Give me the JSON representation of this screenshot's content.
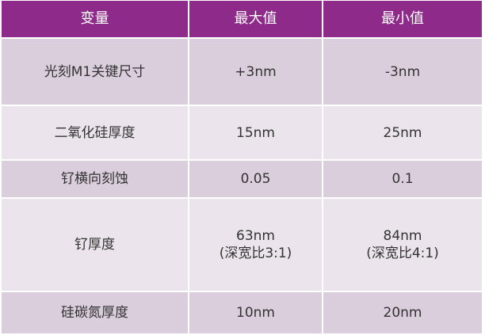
{
  "colors": {
    "header": "#8e2a8a",
    "row_dark": "#dacddc",
    "row_light": "#ece4ec"
  },
  "headers": [
    "变量",
    "最大值",
    "最小值"
  ],
  "rows": [
    {
      "variable": "光刻M1关键尺寸",
      "max": "+3nm",
      "max_note": "",
      "min": "-3nm",
      "min_note": ""
    },
    {
      "variable": "二氧化硅厚度",
      "max": "15nm",
      "max_note": "",
      "min": "25nm",
      "min_note": ""
    },
    {
      "variable": "钌横向刻蚀",
      "max": "0.05",
      "max_note": "",
      "min": "0.1",
      "min_note": ""
    },
    {
      "variable": "钌厚度",
      "max": "63nm",
      "max_note": "(深宽比3:1)",
      "min": "84nm",
      "min_note": "(深宽比4:1)"
    },
    {
      "variable": "硅碳氮厚度",
      "max": "10nm",
      "max_note": "",
      "min": "20nm",
      "min_note": ""
    }
  ]
}
